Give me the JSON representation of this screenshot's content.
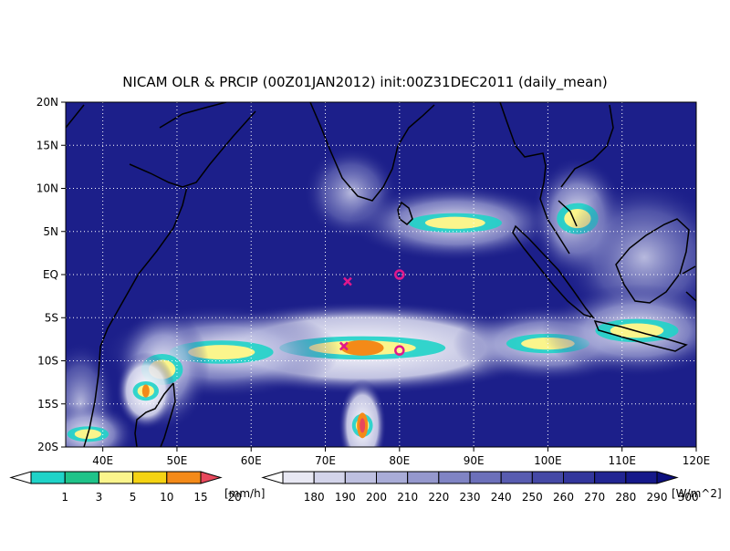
{
  "chart_data": {
    "type": "heatmap",
    "title": "NICAM OLR & PRCIP (00Z01JAN2012) init:00Z31DEC2011 (daily_mean)",
    "xlim": [
      35,
      120
    ],
    "ylim": [
      -20,
      20
    ],
    "x_ticks": [
      {
        "value": 40,
        "label": "40E"
      },
      {
        "value": 50,
        "label": "50E"
      },
      {
        "value": 60,
        "label": "60E"
      },
      {
        "value": 70,
        "label": "70E"
      },
      {
        "value": 80,
        "label": "80E"
      },
      {
        "value": 90,
        "label": "90E"
      },
      {
        "value": 100,
        "label": "100E"
      },
      {
        "value": 110,
        "label": "110E"
      },
      {
        "value": 120,
        "label": "120E"
      }
    ],
    "y_ticks": [
      {
        "value": 20,
        "label": "20N"
      },
      {
        "value": 15,
        "label": "15N"
      },
      {
        "value": 10,
        "label": "10N"
      },
      {
        "value": 5,
        "label": "5N"
      },
      {
        "value": 0,
        "label": "EQ"
      },
      {
        "value": -5,
        "label": "5S"
      },
      {
        "value": -10,
        "label": "10S"
      },
      {
        "value": -15,
        "label": "15S"
      },
      {
        "value": -20,
        "label": "20S"
      }
    ],
    "grid": true,
    "background_olr_color": "#1c1f8a",
    "precip_colorbar": {
      "unit": "[mm/h]",
      "levels": [
        "1",
        "3",
        "5",
        "10",
        "15",
        "20"
      ],
      "colors": [
        "#ffffff",
        "#1fd3c8",
        "#1fc389",
        "#fbf58c",
        "#f5d313",
        "#f48a18",
        "#e8485c"
      ]
    },
    "olr_colorbar": {
      "unit": "[W/m^2]",
      "levels": [
        "180",
        "190",
        "200",
        "210",
        "220",
        "230",
        "240",
        "250",
        "260",
        "270",
        "280",
        "290",
        "300"
      ],
      "colors": [
        "#ffffff",
        "#e8e8f3",
        "#d3d4ea",
        "#bec0e0",
        "#a9acd7",
        "#9598cd",
        "#8084c4",
        "#6c70ba",
        "#585cb0",
        "#4549a6",
        "#33369c",
        "#222592",
        "#16198a",
        "#0d107e"
      ]
    },
    "markers": [
      {
        "type": "x",
        "lon": 73,
        "lat": -0.8,
        "color": "#e0188c"
      },
      {
        "type": "x",
        "lon": 72.5,
        "lat": -8.3,
        "color": "#e0188c"
      },
      {
        "type": "circle",
        "lon": 80,
        "lat": 0,
        "color": "#e0188c"
      },
      {
        "type": "circle",
        "lon": 80,
        "lat": -8.8,
        "color": "#e0188c"
      }
    ],
    "cloud_features": [
      {
        "lon": 73.5,
        "lat": 9.5,
        "rx": 4,
        "ry": 3,
        "level": "low"
      },
      {
        "lon": 87.5,
        "lat": 6.0,
        "rx": 9,
        "ry": 2.5,
        "level": "mid"
      },
      {
        "lon": 104,
        "lat": 6.5,
        "rx": 4,
        "ry": 4,
        "level": "mid"
      },
      {
        "lon": 113,
        "lat": 2.0,
        "rx": 7,
        "ry": 5,
        "level": "low"
      },
      {
        "lon": 75,
        "lat": -8.5,
        "rx": 16,
        "ry": 3,
        "level": "high"
      },
      {
        "lon": 56,
        "lat": -9.0,
        "rx": 10,
        "ry": 3,
        "level": "mid"
      },
      {
        "lon": 48,
        "lat": -11.0,
        "rx": 4,
        "ry": 4,
        "level": "mid"
      },
      {
        "lon": 100,
        "lat": -8.0,
        "rx": 8,
        "ry": 2.5,
        "level": "mid"
      },
      {
        "lon": 112,
        "lat": -6.5,
        "rx": 8,
        "ry": 3,
        "level": "mid"
      },
      {
        "lon": 75,
        "lat": -17.5,
        "rx": 2,
        "ry": 3,
        "level": "max"
      },
      {
        "lon": 45.8,
        "lat": -13.5,
        "rx": 2.5,
        "ry": 2.5,
        "level": "high"
      },
      {
        "lon": 37,
        "lat": -15,
        "rx": 3,
        "ry": 4,
        "level": "low"
      },
      {
        "lon": 38,
        "lat": -18.5,
        "rx": 4,
        "ry": 2,
        "level": "mid"
      }
    ]
  }
}
